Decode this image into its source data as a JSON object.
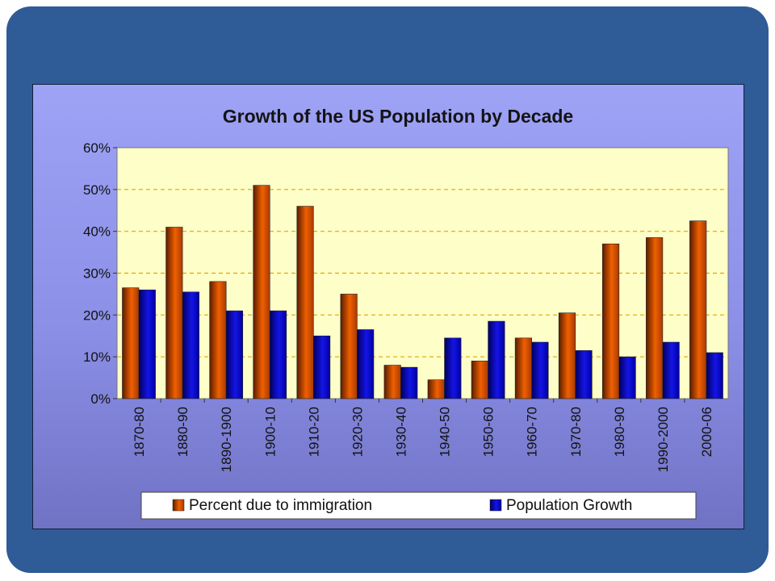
{
  "chart_data": {
    "type": "bar",
    "title": "Growth of the US Population by Decade",
    "categories": [
      "1870-80",
      "1880-90",
      "1890-1900",
      "1900-10",
      "1910-20",
      "1920-30",
      "1930-40",
      "1940-50",
      "1950-60",
      "1960-70",
      "1970-80",
      "1980-90",
      "1990-2000",
      "2000-06"
    ],
    "series": [
      {
        "name": "Percent due to immigration",
        "values": [
          26.5,
          41,
          28,
          51,
          46,
          25,
          8,
          4.5,
          9,
          14.5,
          20.5,
          37,
          38.5,
          42.5
        ],
        "color": "#f06000"
      },
      {
        "name": "Population Growth",
        "values": [
          26,
          25.5,
          21,
          21,
          15,
          16.5,
          7.5,
          14.5,
          18.5,
          13.5,
          11.5,
          10,
          13.5,
          11
        ],
        "color": "#1010e0"
      }
    ],
    "ylim": [
      0,
      60
    ],
    "yticks": [
      "0%",
      "10%",
      "20%",
      "30%",
      "40%",
      "50%",
      "60%"
    ],
    "grid": true,
    "legend_position": "bottom",
    "plot_background": "#fefec8"
  }
}
